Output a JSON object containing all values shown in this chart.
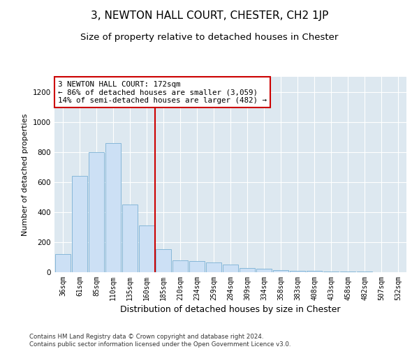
{
  "title": "3, NEWTON HALL COURT, CHESTER, CH2 1JP",
  "subtitle": "Size of property relative to detached houses in Chester",
  "xlabel": "Distribution of detached houses by size in Chester",
  "ylabel": "Number of detached properties",
  "bar_labels": [
    "36sqm",
    "61sqm",
    "85sqm",
    "110sqm",
    "135sqm",
    "160sqm",
    "185sqm",
    "210sqm",
    "234sqm",
    "259sqm",
    "284sqm",
    "309sqm",
    "334sqm",
    "358sqm",
    "383sqm",
    "408sqm",
    "433sqm",
    "458sqm",
    "482sqm",
    "507sqm",
    "532sqm"
  ],
  "bar_values": [
    120,
    640,
    800,
    860,
    450,
    310,
    155,
    80,
    75,
    65,
    50,
    30,
    25,
    15,
    10,
    8,
    5,
    4,
    3,
    2,
    2
  ],
  "bar_color": "#cce0f5",
  "bar_edge_color": "#7ab0d4",
  "marker_line_index": 5.5,
  "annotation_text": "3 NEWTON HALL COURT: 172sqm\n← 86% of detached houses are smaller (3,059)\n14% of semi-detached houses are larger (482) →",
  "annotation_box_color": "#ffffff",
  "annotation_box_edge_color": "#cc0000",
  "marker_line_color": "#cc0000",
  "ylim": [
    0,
    1300
  ],
  "yticks": [
    0,
    200,
    400,
    600,
    800,
    1000,
    1200
  ],
  "bg_color": "#dde8f0",
  "footer_text": "Contains HM Land Registry data © Crown copyright and database right 2024.\nContains public sector information licensed under the Open Government Licence v3.0.",
  "title_fontsize": 11,
  "subtitle_fontsize": 9.5,
  "xlabel_fontsize": 9,
  "ylabel_fontsize": 8
}
